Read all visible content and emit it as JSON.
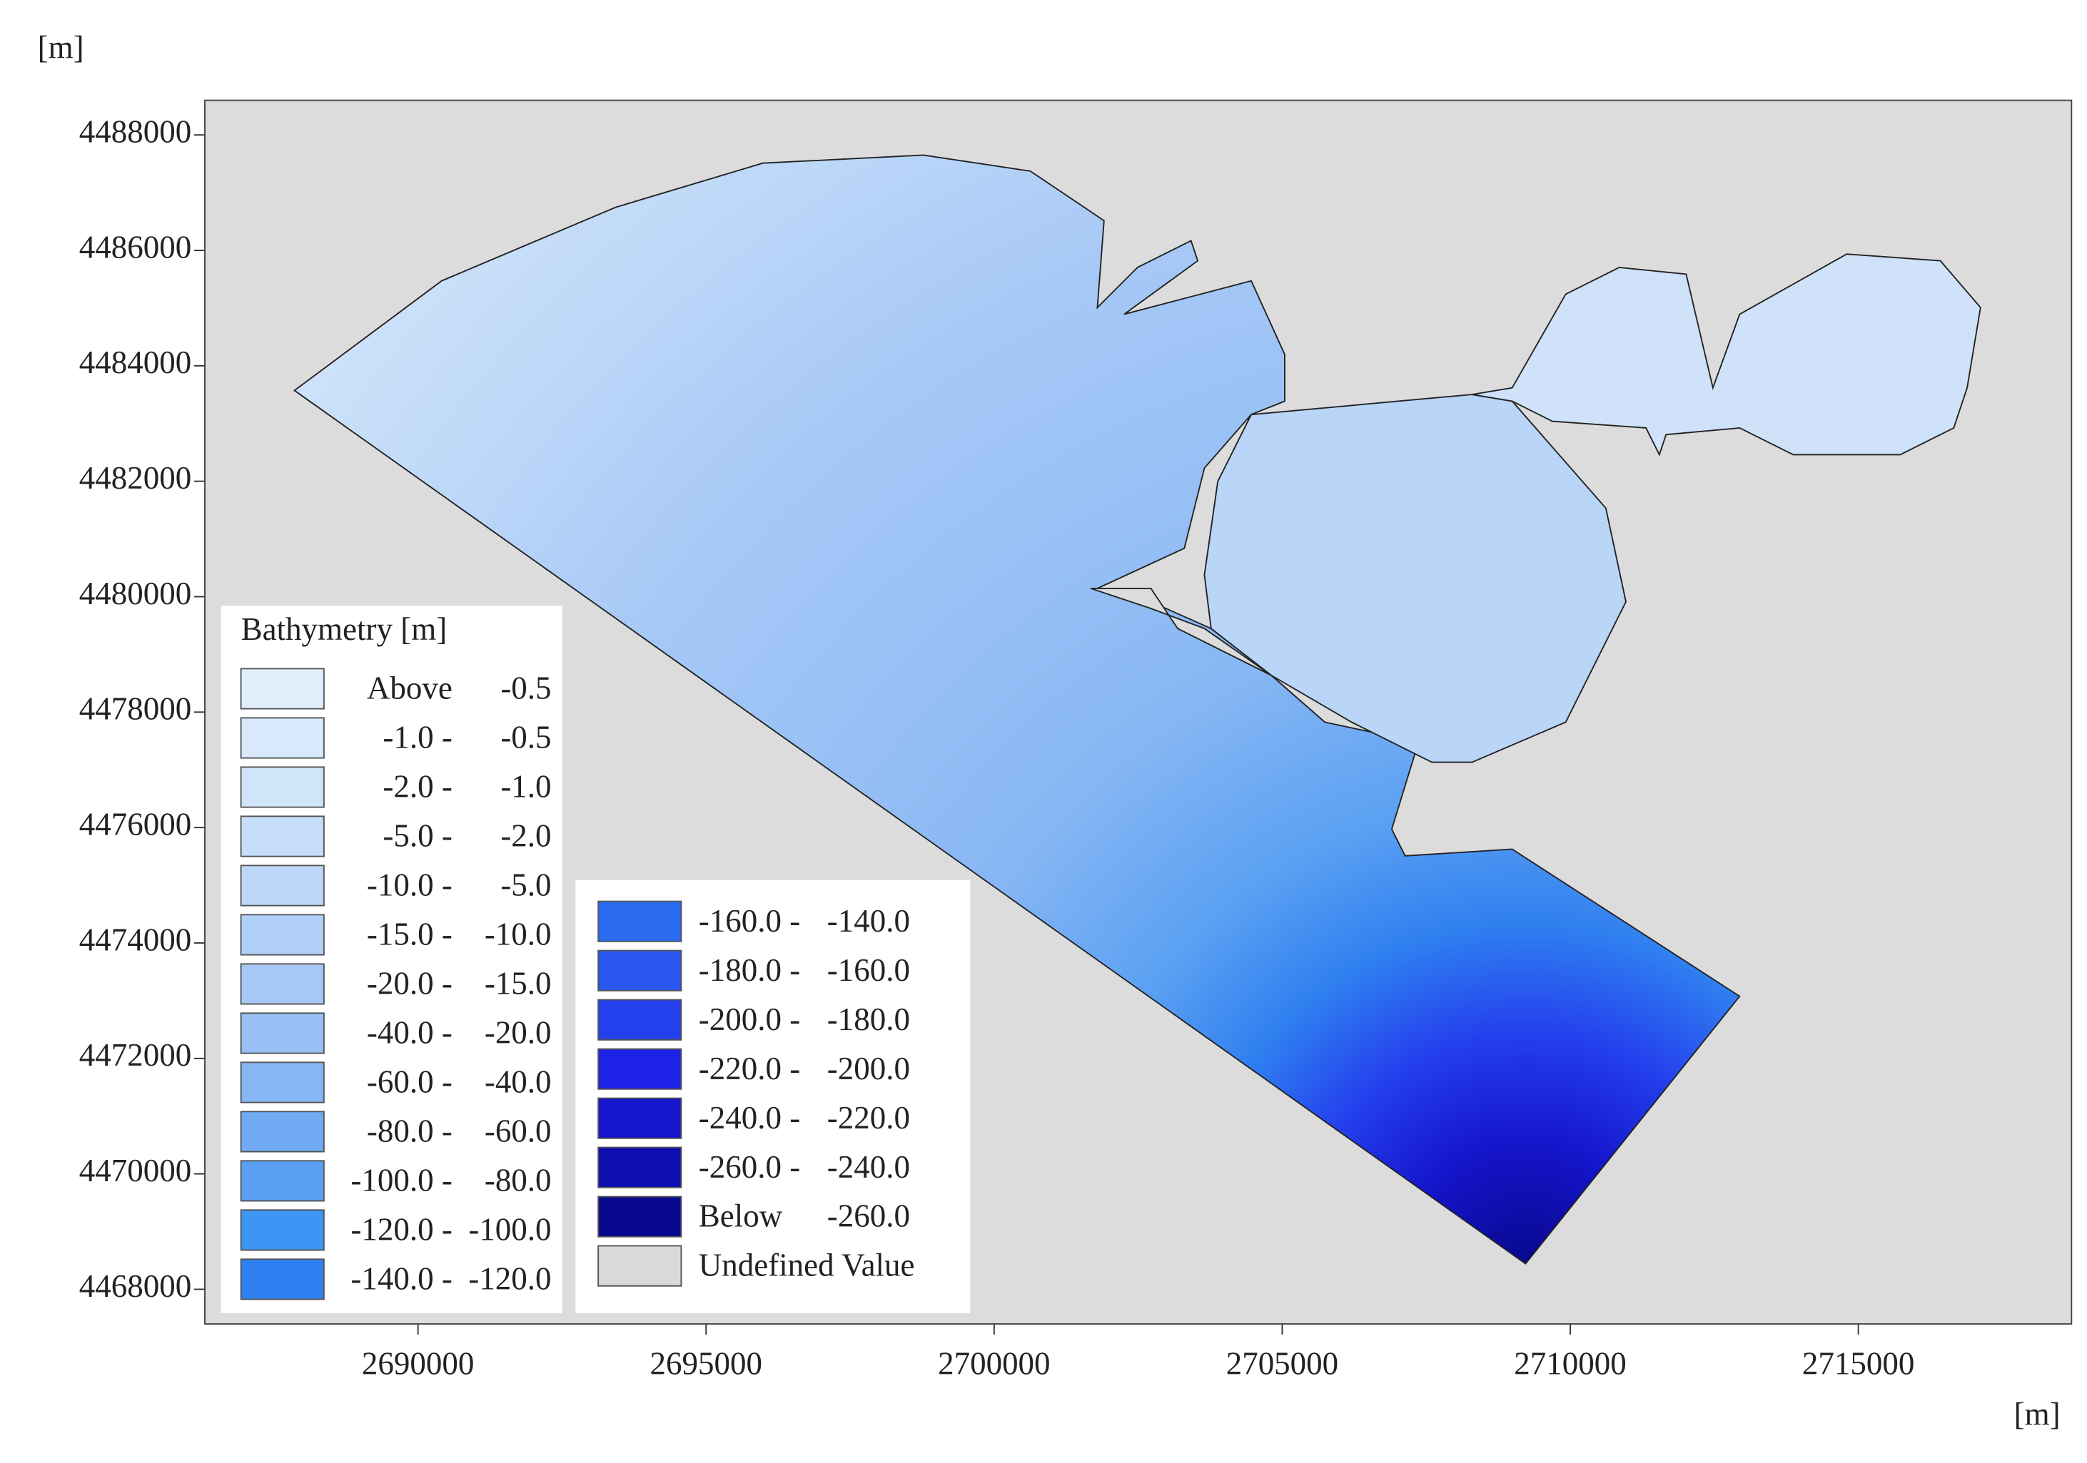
{
  "chart_data": {
    "type": "contour",
    "x_unit": "[m]",
    "y_unit": "[m]",
    "xlim": [
      2686300,
      2718700
    ],
    "ylim": [
      4467400,
      4488600
    ],
    "xticks": [
      2690000,
      2695000,
      2700000,
      2705000,
      2710000,
      2715000
    ],
    "yticks": [
      4468000,
      4470000,
      4472000,
      4474000,
      4476000,
      4478000,
      4480000,
      4482000,
      4484000,
      4486000,
      4488000
    ],
    "legend": {
      "title": "Bathymetry [m]",
      "items": [
        {
          "from": "Above",
          "to": "-0.5",
          "color": "#e0eefc"
        },
        {
          "from": "-1.0 -",
          "to": "-0.5",
          "color": "#d8e9fb"
        },
        {
          "from": "-2.0 -",
          "to": "-1.0",
          "color": "#d0e4fa"
        },
        {
          "from": "-5.0 -",
          "to": "-2.0",
          "color": "#c6def9"
        },
        {
          "from": "-10.0 -",
          "to": "-5.0",
          "color": "#bcd7f8"
        },
        {
          "from": "-15.0 -",
          "to": "-10.0",
          "color": "#b1d0f7"
        },
        {
          "from": "-20.0 -",
          "to": "-15.0",
          "color": "#a6c8f6"
        },
        {
          "from": "-40.0 -",
          "to": "-20.0",
          "color": "#98c0f5"
        },
        {
          "from": "-60.0 -",
          "to": "-40.0",
          "color": "#86b6f4"
        },
        {
          "from": "-80.0 -",
          "to": "-60.0",
          "color": "#70aaf3"
        },
        {
          "from": "-100.0 -",
          "to": "-80.0",
          "color": "#5aa0f2"
        },
        {
          "from": "-120.0 -",
          "to": "-100.0",
          "color": "#3d95f4"
        },
        {
          "from": "-140.0 -",
          "to": "-120.0",
          "color": "#2f7ff0"
        },
        {
          "from": "-160.0 -",
          "to": "-140.0",
          "color": "#2b6bf0"
        },
        {
          "from": "-180.0 -",
          "to": "-160.0",
          "color": "#2856ee"
        },
        {
          "from": "-200.0 -",
          "to": "-180.0",
          "color": "#2440ed"
        },
        {
          "from": "-220.0 -",
          "to": "-200.0",
          "color": "#1e22e6"
        },
        {
          "from": "-240.0 -",
          "to": "-220.0",
          "color": "#1515cc"
        },
        {
          "from": "-260.0 -",
          "to": "-240.0",
          "color": "#0e0eb0"
        },
        {
          "from": "Below",
          "to": "-260.0",
          "color": "#08088f"
        },
        {
          "from": "Undefined Value",
          "color": "#d9d9d9"
        }
      ]
    }
  }
}
